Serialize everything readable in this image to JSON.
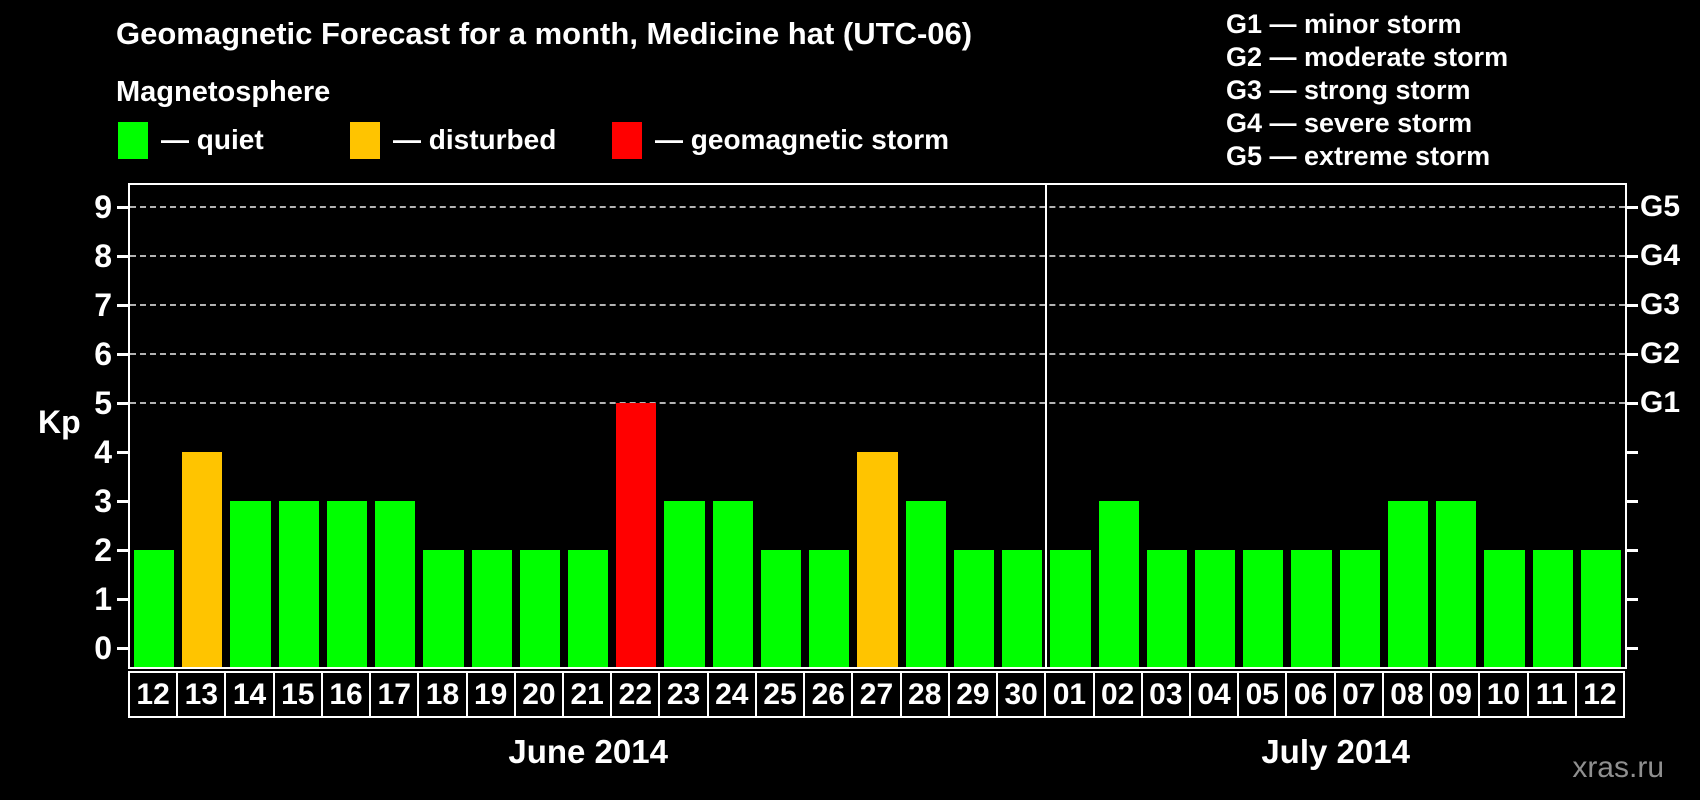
{
  "title": "Geomagnetic Forecast for a month, Medicine hat (UTC-06)",
  "legend": {
    "heading": "Magnetosphere",
    "items": [
      {
        "name": "quiet",
        "label": "— quiet",
        "color": "#00ff00"
      },
      {
        "name": "disturbed",
        "label": "— disturbed",
        "color": "#ffc400"
      },
      {
        "name": "storm",
        "label": "— geomagnetic storm",
        "color": "#ff0000"
      }
    ]
  },
  "g_legend": [
    "G1 — minor storm",
    "G2 — moderate storm",
    "G3 — strong storm",
    "G4 — severe storm",
    "G5 — extreme storm"
  ],
  "watermark": "xras.ru",
  "chart_data": {
    "type": "bar",
    "title": "Geomagnetic Forecast for a month, Medicine hat (UTC-06)",
    "ylabel": "Kp",
    "ylim": [
      0,
      9
    ],
    "y_ticks": [
      0,
      1,
      2,
      3,
      4,
      5,
      6,
      7,
      8,
      9
    ],
    "gridlines": [
      5,
      6,
      7,
      8,
      9
    ],
    "grid_style": "dashed",
    "legend_position": "top",
    "status_colors": {
      "quiet": "#00ff00",
      "disturbed": "#ffc400",
      "storm": "#ff0000"
    },
    "g_scale": [
      {
        "label": "G1",
        "value": 5
      },
      {
        "label": "G2",
        "value": 6
      },
      {
        "label": "G3",
        "value": 7
      },
      {
        "label": "G4",
        "value": 8
      },
      {
        "label": "G5",
        "value": 9
      }
    ],
    "months": [
      {
        "label": "June 2014",
        "days": [
          {
            "day": "12",
            "value": 2,
            "status": "quiet"
          },
          {
            "day": "13",
            "value": 4,
            "status": "disturbed"
          },
          {
            "day": "14",
            "value": 3,
            "status": "quiet"
          },
          {
            "day": "15",
            "value": 3,
            "status": "quiet"
          },
          {
            "day": "16",
            "value": 3,
            "status": "quiet"
          },
          {
            "day": "17",
            "value": 3,
            "status": "quiet"
          },
          {
            "day": "18",
            "value": 2,
            "status": "quiet"
          },
          {
            "day": "19",
            "value": 2,
            "status": "quiet"
          },
          {
            "day": "20",
            "value": 2,
            "status": "quiet"
          },
          {
            "day": "21",
            "value": 2,
            "status": "quiet"
          },
          {
            "day": "22",
            "value": 5,
            "status": "storm"
          },
          {
            "day": "23",
            "value": 3,
            "status": "quiet"
          },
          {
            "day": "24",
            "value": 3,
            "status": "quiet"
          },
          {
            "day": "25",
            "value": 2,
            "status": "quiet"
          },
          {
            "day": "26",
            "value": 2,
            "status": "quiet"
          },
          {
            "day": "27",
            "value": 4,
            "status": "disturbed"
          },
          {
            "day": "28",
            "value": 3,
            "status": "quiet"
          },
          {
            "day": "29",
            "value": 2,
            "status": "quiet"
          },
          {
            "day": "30",
            "value": 2,
            "status": "quiet"
          }
        ]
      },
      {
        "label": "July 2014",
        "days": [
          {
            "day": "01",
            "value": 2,
            "status": "quiet"
          },
          {
            "day": "02",
            "value": 3,
            "status": "quiet"
          },
          {
            "day": "03",
            "value": 2,
            "status": "quiet"
          },
          {
            "day": "04",
            "value": 2,
            "status": "quiet"
          },
          {
            "day": "05",
            "value": 2,
            "status": "quiet"
          },
          {
            "day": "06",
            "value": 2,
            "status": "quiet"
          },
          {
            "day": "07",
            "value": 2,
            "status": "quiet"
          },
          {
            "day": "08",
            "value": 3,
            "status": "quiet"
          },
          {
            "day": "09",
            "value": 3,
            "status": "quiet"
          },
          {
            "day": "10",
            "value": 2,
            "status": "quiet"
          },
          {
            "day": "11",
            "value": 2,
            "status": "quiet"
          },
          {
            "day": "12",
            "value": 2,
            "status": "quiet"
          }
        ]
      }
    ]
  }
}
